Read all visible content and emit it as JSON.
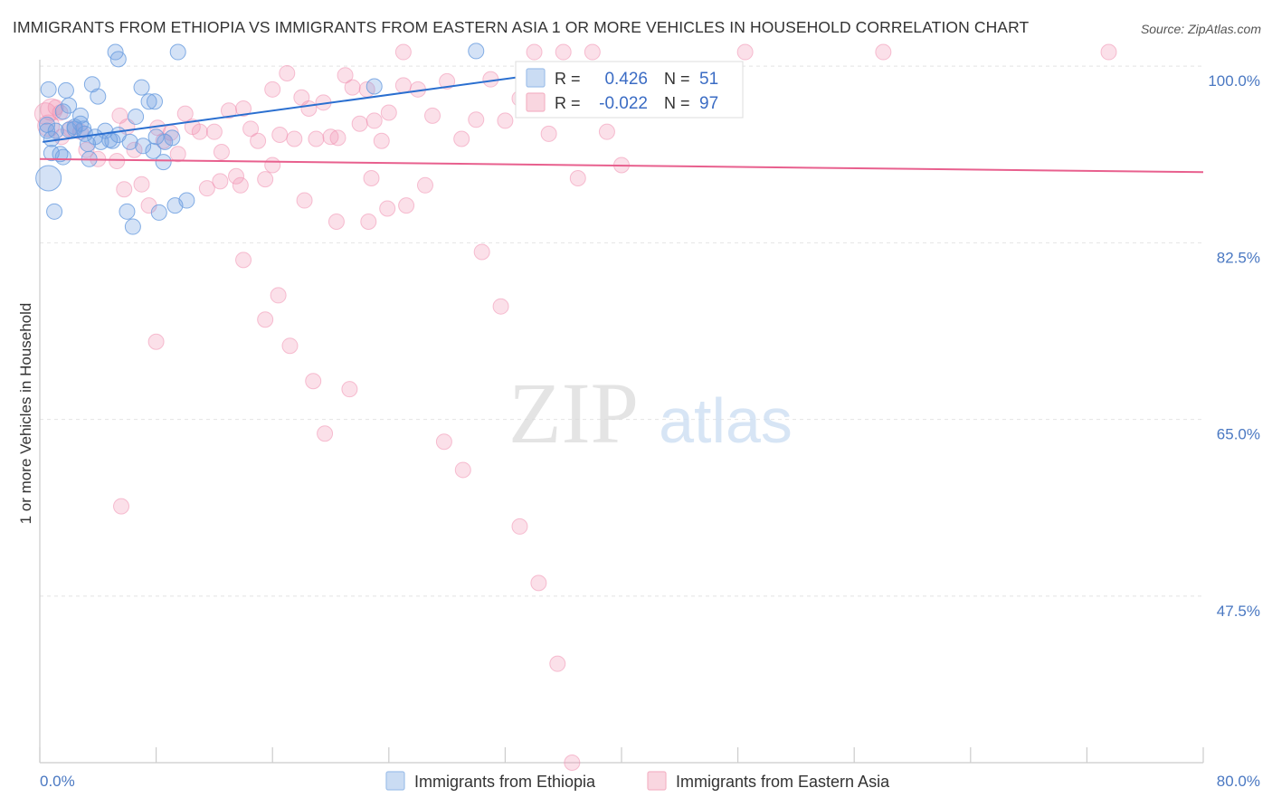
{
  "title": "IMMIGRANTS FROM ETHIOPIA VS IMMIGRANTS FROM EASTERN ASIA 1 OR MORE VEHICLES IN HOUSEHOLD CORRELATION CHART",
  "source": "Source: ZipAtlas.com",
  "watermark": {
    "zip": "ZIP",
    "atlas": "atlas"
  },
  "legend": {
    "rows": [
      {
        "r_label": "R =",
        "r_value": "0.426",
        "n_label": "N =",
        "n_value": "51",
        "color": "#9fc0ea"
      },
      {
        "r_label": "R =",
        "r_value": "-0.022",
        "n_label": "N =",
        "n_value": "97",
        "color": "#f4b4c6"
      }
    ]
  },
  "bottom_legend": {
    "items": [
      {
        "label": "Immigrants from Ethiopia",
        "color": "#9fc0ea"
      },
      {
        "label": "Immigrants from Eastern Asia",
        "color": "#f4b4c6"
      }
    ]
  },
  "chart_data": {
    "type": "scatter",
    "title": "IMMIGRANTS FROM ETHIOPIA VS IMMIGRANTS FROM EASTERN ASIA 1 OR MORE VEHICLES IN HOUSEHOLD CORRELATION CHART",
    "xlabel": "",
    "ylabel": "1 or more Vehicles in Household",
    "xlim": [
      0,
      80
    ],
    "ylim": [
      31,
      101
    ],
    "x_tick_labels": [
      "0.0%",
      "80.0%"
    ],
    "y_ticks": [
      47.5,
      65.0,
      82.5,
      100.0
    ],
    "y_tick_labels": [
      "47.5%",
      "65.0%",
      "82.5%",
      "100.0%"
    ],
    "grid": true,
    "legend_position": "top-center",
    "series": [
      {
        "name": "Immigrants from Ethiopia",
        "color": "#6fa0e0",
        "trend_color": "#2a6fd0",
        "trend": [
          [
            0.2,
            92.5
          ],
          [
            40.0,
            100.3
          ]
        ],
        "points": [
          [
            0.5,
            94.2
          ],
          [
            0.5,
            93.6
          ],
          [
            0.6,
            88.9
          ],
          [
            0.8,
            91.4
          ],
          [
            0.8,
            92.8
          ],
          [
            1.0,
            85.6
          ],
          [
            1.1,
            93.6
          ],
          [
            1.4,
            91.3
          ],
          [
            1.6,
            91.0
          ],
          [
            1.8,
            97.6
          ],
          [
            2.0,
            96.1
          ],
          [
            2.0,
            93.7
          ],
          [
            2.4,
            93.8
          ],
          [
            2.8,
            95.1
          ],
          [
            2.8,
            94.3
          ],
          [
            3.1,
            93.3
          ],
          [
            3.3,
            92.3
          ],
          [
            3.4,
            90.8
          ],
          [
            3.6,
            98.2
          ],
          [
            3.8,
            93.0
          ],
          [
            4.0,
            97.0
          ],
          [
            4.2,
            92.5
          ],
          [
            4.5,
            93.6
          ],
          [
            4.8,
            92.7
          ],
          [
            5.0,
            92.6
          ],
          [
            5.2,
            101.4
          ],
          [
            5.4,
            100.7
          ],
          [
            6.0,
            85.6
          ],
          [
            6.2,
            92.5
          ],
          [
            6.4,
            84.1
          ],
          [
            6.6,
            95.0
          ],
          [
            7.0,
            97.9
          ],
          [
            7.1,
            92.1
          ],
          [
            7.5,
            96.5
          ],
          [
            7.9,
            96.5
          ],
          [
            7.8,
            91.6
          ],
          [
            8.0,
            93.0
          ],
          [
            8.6,
            92.5
          ],
          [
            8.2,
            85.5
          ],
          [
            9.1,
            92.9
          ],
          [
            9.5,
            101.4
          ],
          [
            9.3,
            86.2
          ],
          [
            10.1,
            86.7
          ],
          [
            0.6,
            97.7
          ],
          [
            1.6,
            95.5
          ],
          [
            2.4,
            94.0
          ],
          [
            3.0,
            93.8
          ],
          [
            5.4,
            93.2
          ],
          [
            8.5,
            90.5
          ],
          [
            23.0,
            98.0
          ],
          [
            30.0,
            101.5
          ]
        ]
      },
      {
        "name": "Immigrants from Eastern Asia",
        "color": "#f08fb0",
        "trend_color": "#e8608e",
        "trend": [
          [
            0.0,
            90.8
          ],
          [
            80.0,
            89.5
          ]
        ],
        "points": [
          [
            0.4,
            95.3
          ],
          [
            0.6,
            94.1
          ],
          [
            0.8,
            95.7
          ],
          [
            1.1,
            95.9
          ],
          [
            1.4,
            95.4
          ],
          [
            1.5,
            93.0
          ],
          [
            2.1,
            93.8
          ],
          [
            2.8,
            93.5
          ],
          [
            3.2,
            91.7
          ],
          [
            4.0,
            90.8
          ],
          [
            5.3,
            90.6
          ],
          [
            5.5,
            95.1
          ],
          [
            6.0,
            94.0
          ],
          [
            6.5,
            91.7
          ],
          [
            7.0,
            88.3
          ],
          [
            7.5,
            86.2
          ],
          [
            8.1,
            93.9
          ],
          [
            8.5,
            92.6
          ],
          [
            9.0,
            93.4
          ],
          [
            9.5,
            91.3
          ],
          [
            10.0,
            95.3
          ],
          [
            10.5,
            94.0
          ],
          [
            11.0,
            93.5
          ],
          [
            11.5,
            87.9
          ],
          [
            12.0,
            93.5
          ],
          [
            12.5,
            91.5
          ],
          [
            13.0,
            95.6
          ],
          [
            13.5,
            89.1
          ],
          [
            14.0,
            95.8
          ],
          [
            14.5,
            93.8
          ],
          [
            15.0,
            92.6
          ],
          [
            15.5,
            88.8
          ],
          [
            16.0,
            97.7
          ],
          [
            16.5,
            93.2
          ],
          [
            17.0,
            99.3
          ],
          [
            17.5,
            92.8
          ],
          [
            18.0,
            96.9
          ],
          [
            18.5,
            95.8
          ],
          [
            19.0,
            92.8
          ],
          [
            19.5,
            96.4
          ],
          [
            20.0,
            93.0
          ],
          [
            20.5,
            92.9
          ],
          [
            21.0,
            99.1
          ],
          [
            21.5,
            97.9
          ],
          [
            22.0,
            94.3
          ],
          [
            22.5,
            97.7
          ],
          [
            23.0,
            94.6
          ],
          [
            23.5,
            92.6
          ],
          [
            24.0,
            95.4
          ],
          [
            25.0,
            98.1
          ],
          [
            26.0,
            97.7
          ],
          [
            27.0,
            95.1
          ],
          [
            28.0,
            98.5
          ],
          [
            29.0,
            92.8
          ],
          [
            30.0,
            94.7
          ],
          [
            31.0,
            98.7
          ],
          [
            32.0,
            94.6
          ],
          [
            33.0,
            96.8
          ],
          [
            34.0,
            101.4
          ],
          [
            35.0,
            93.3
          ],
          [
            36.0,
            101.4
          ],
          [
            37.0,
            88.9
          ],
          [
            38.0,
            101.4
          ],
          [
            39.0,
            93.5
          ],
          [
            40.0,
            90.2
          ],
          [
            5.8,
            87.8
          ],
          [
            8.0,
            72.7
          ],
          [
            14.0,
            80.8
          ],
          [
            15.5,
            74.9
          ],
          [
            17.2,
            72.3
          ],
          [
            18.8,
            68.8
          ],
          [
            16.4,
            77.3
          ],
          [
            19.6,
            63.6
          ],
          [
            21.3,
            68.0
          ],
          [
            22.6,
            84.6
          ],
          [
            23.9,
            85.9
          ],
          [
            25.2,
            86.2
          ],
          [
            26.5,
            88.2
          ],
          [
            27.8,
            62.8
          ],
          [
            29.1,
            60.0
          ],
          [
            30.4,
            81.6
          ],
          [
            31.7,
            76.2
          ],
          [
            33.0,
            54.4
          ],
          [
            34.3,
            48.8
          ],
          [
            35.6,
            40.8
          ],
          [
            5.6,
            56.4
          ],
          [
            12.4,
            88.6
          ],
          [
            13.8,
            88.2
          ],
          [
            16.0,
            90.2
          ],
          [
            18.2,
            86.7
          ],
          [
            20.4,
            84.6
          ],
          [
            22.8,
            88.9
          ],
          [
            25.0,
            101.4
          ],
          [
            48.5,
            101.4
          ],
          [
            58.0,
            101.4
          ],
          [
            73.5,
            101.4
          ],
          [
            36.6,
            31.0
          ]
        ]
      }
    ]
  }
}
